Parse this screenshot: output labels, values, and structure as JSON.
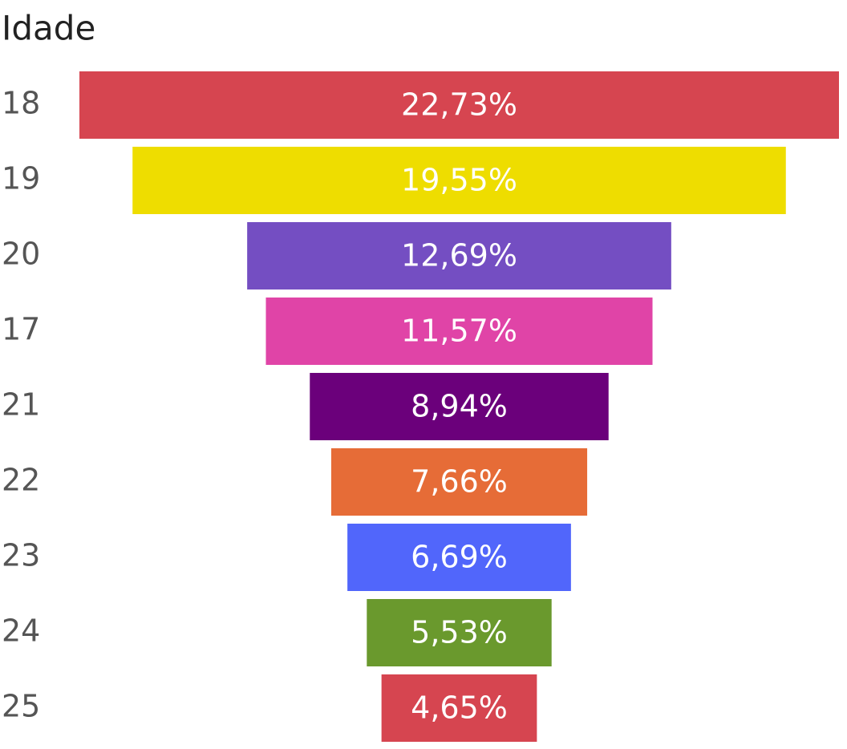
{
  "chart_data": {
    "type": "funnel",
    "title": "Idade",
    "categories": [
      "18",
      "19",
      "20",
      "17",
      "21",
      "22",
      "23",
      "24",
      "25"
    ],
    "values": [
      22.73,
      19.55,
      12.69,
      11.57,
      8.94,
      7.66,
      6.69,
      5.53,
      4.65
    ],
    "value_labels": [
      "22,73%",
      "19,55%",
      "12,69%",
      "11,57%",
      "8,94%",
      "7,66%",
      "6,69%",
      "5,53%",
      "4,65%"
    ],
    "colors": [
      "#d64550",
      "#eedd00",
      "#744ec2",
      "#e044a7",
      "#6b007b",
      "#e66c37",
      "#5166fb",
      "#6a992d",
      "#d64550"
    ]
  }
}
